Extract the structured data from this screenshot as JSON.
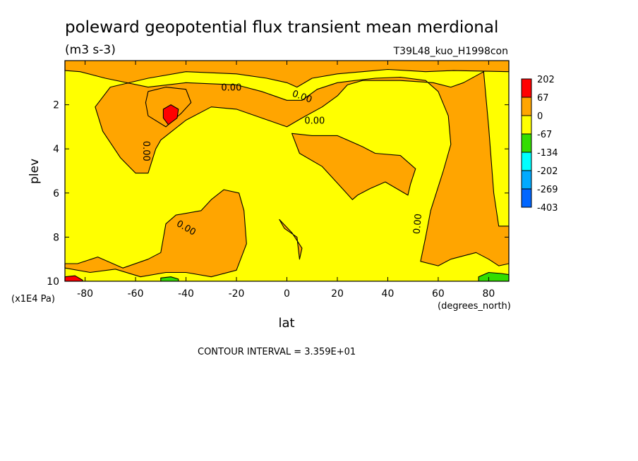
{
  "chart_data": {
    "type": "contour",
    "title": "poleward geopotential flux transient mean merdional",
    "units": "(m3 s-3)",
    "run_label": "T39L48_kuo_H1998con",
    "xlabel": "lat",
    "x_units": "(degrees_north)",
    "ylabel": "plev",
    "y_units": "(x1E4 Pa)",
    "xlim": [
      -88,
      88
    ],
    "ylim": [
      10,
      0
    ],
    "x_ticks": [
      -80,
      -60,
      -40,
      -20,
      0,
      20,
      40,
      60,
      80
    ],
    "x_tick_labels": [
      "-80",
      "-60",
      "-40",
      "-20",
      "0",
      "20",
      "40",
      "60",
      "80"
    ],
    "y_ticks": [
      2,
      4,
      6,
      8,
      10
    ],
    "y_tick_labels": [
      "2",
      "4",
      "6",
      "8",
      "10"
    ],
    "contour_interval_text": "CONTOUR INTERVAL = 3.359E+01",
    "zero_contour_label": "0.00",
    "colorbar": {
      "levels": [
        "202",
        "67",
        "0",
        "-67",
        "-134",
        "-202",
        "-269",
        "-403"
      ],
      "colors": [
        "#ff0000",
        "#ffa500",
        "#ffff00",
        "#33dd00",
        "#00ffff",
        "#00aaff",
        "#0066ff"
      ]
    },
    "regions": [
      {
        "color_index": 1,
        "points": [
          [
            -88,
            9.4
          ],
          [
            -78,
            9.6
          ],
          [
            -68,
            9.45
          ],
          [
            -58,
            9.8
          ],
          [
            -48,
            9.6
          ],
          [
            -40,
            9.6
          ],
          [
            -30,
            9.8
          ],
          [
            -20,
            9.5
          ],
          [
            -16,
            8.3
          ],
          [
            -17,
            6.8
          ],
          [
            -19,
            6.0
          ],
          [
            -25,
            5.85
          ],
          [
            -30,
            6.3
          ],
          [
            -34,
            6.8
          ],
          [
            -44,
            7.0
          ],
          [
            -48,
            7.4
          ],
          [
            -50,
            8.7
          ],
          [
            -55,
            9.0
          ],
          [
            -65,
            9.4
          ],
          [
            -75,
            8.9
          ],
          [
            -83,
            9.2
          ],
          [
            -88,
            9.2
          ]
        ]
      },
      {
        "color_index": 1,
        "points": [
          [
            -88,
            0
          ],
          [
            88,
            0
          ],
          [
            88,
            0.5
          ],
          [
            66,
            0.45
          ],
          [
            55,
            0.5
          ],
          [
            40,
            0.4
          ],
          [
            30,
            0.5
          ],
          [
            20,
            0.6
          ],
          [
            10,
            0.8
          ],
          [
            4,
            1.2
          ],
          [
            0,
            1.0
          ],
          [
            -8,
            0.8
          ],
          [
            -20,
            0.6
          ],
          [
            -40,
            0.5
          ],
          [
            -55,
            0.8
          ],
          [
            -70,
            1.2
          ],
          [
            -76,
            2.1
          ],
          [
            -73,
            3.2
          ],
          [
            -66,
            4.4
          ],
          [
            -60,
            5.1
          ],
          [
            -55,
            5.1
          ],
          [
            -52,
            4.0
          ],
          [
            -50,
            3.6
          ],
          [
            -40,
            2.7
          ],
          [
            -30,
            2.1
          ],
          [
            -20,
            2.2
          ],
          [
            -10,
            2.6
          ],
          [
            0,
            3.0
          ],
          [
            6,
            2.6
          ],
          [
            14,
            2.1
          ],
          [
            20,
            1.6
          ],
          [
            24,
            1.1
          ],
          [
            30,
            0.9
          ],
          [
            45,
            0.9
          ],
          [
            58,
            1.0
          ],
          [
            65,
            1.2
          ],
          [
            70,
            1.0
          ],
          [
            78,
            0.5
          ],
          [
            80,
            3.0
          ],
          [
            82,
            6.0
          ],
          [
            84,
            7.5
          ],
          [
            88,
            7.5
          ],
          [
            88,
            9.2
          ],
          [
            84,
            9.3
          ],
          [
            80,
            9.0
          ],
          [
            75,
            8.7
          ],
          [
            65,
            9.0
          ],
          [
            60,
            9.3
          ],
          [
            53,
            9.1
          ],
          [
            55,
            8.0
          ],
          [
            57,
            6.8
          ],
          [
            62,
            5.0
          ],
          [
            65,
            3.8
          ],
          [
            64,
            2.5
          ],
          [
            60,
            1.4
          ],
          [
            55,
            0.9
          ],
          [
            45,
            0.75
          ],
          [
            35,
            0.8
          ],
          [
            27,
            0.9
          ],
          [
            20,
            1.0
          ],
          [
            12,
            1.3
          ],
          [
            6,
            1.8
          ],
          [
            0,
            1.8
          ],
          [
            -10,
            1.4
          ],
          [
            -20,
            1.1
          ],
          [
            -40,
            1.0
          ],
          [
            -55,
            1.2
          ],
          [
            -72,
            0.8
          ],
          [
            -82,
            0.5
          ],
          [
            -88,
            0.45
          ]
        ]
      },
      {
        "color_index": 1,
        "points": [
          [
            2,
            3.3
          ],
          [
            10,
            3.4
          ],
          [
            20,
            3.4
          ],
          [
            30,
            3.9
          ],
          [
            35,
            4.2
          ],
          [
            45,
            4.3
          ],
          [
            51,
            4.9
          ],
          [
            49,
            5.6
          ],
          [
            48,
            6.1
          ],
          [
            39,
            5.5
          ],
          [
            33,
            5.8
          ],
          [
            28,
            6.1
          ],
          [
            26,
            6.3
          ],
          [
            22,
            5.8
          ],
          [
            14,
            4.8
          ],
          [
            5,
            4.2
          ],
          [
            3,
            3.6
          ]
        ]
      },
      {
        "color_index": 1,
        "points": [
          [
            -3,
            7.2
          ],
          [
            2,
            7.8
          ],
          [
            6,
            8.5
          ],
          [
            5,
            9.0
          ],
          [
            4,
            8.0
          ],
          [
            -1,
            7.6
          ],
          [
            -3,
            7.2
          ]
        ]
      },
      {
        "color_index": 1,
        "points": [
          [
            -55,
            1.4
          ],
          [
            -48,
            1.2
          ],
          [
            -40,
            1.3
          ],
          [
            -38,
            1.9
          ],
          [
            -42,
            2.4
          ],
          [
            -48,
            3.0
          ],
          [
            -55,
            2.5
          ],
          [
            -56,
            1.9
          ],
          [
            -55,
            1.4
          ]
        ]
      },
      {
        "color_index": 0,
        "points": [
          [
            -49,
            2.2
          ],
          [
            -46,
            2.0
          ],
          [
            -43,
            2.2
          ],
          [
            -43.5,
            2.6
          ],
          [
            -47,
            2.9
          ],
          [
            -49,
            2.6
          ],
          [
            -49,
            2.2
          ]
        ]
      },
      {
        "color_index": 0,
        "points": [
          [
            -88,
            9.8
          ],
          [
            -84,
            9.75
          ],
          [
            -81,
            9.95
          ],
          [
            -81,
            10
          ],
          [
            -88,
            10
          ]
        ]
      },
      {
        "color_index": 3,
        "points": [
          [
            -50,
            9.85
          ],
          [
            -46,
            9.8
          ],
          [
            -43,
            9.9
          ],
          [
            -43,
            10
          ],
          [
            -50,
            10
          ]
        ]
      },
      {
        "color_index": 3,
        "points": [
          [
            76,
            9.8
          ],
          [
            80,
            9.6
          ],
          [
            85,
            9.65
          ],
          [
            88,
            9.7
          ],
          [
            88,
            10
          ],
          [
            76,
            10
          ]
        ]
      }
    ]
  }
}
